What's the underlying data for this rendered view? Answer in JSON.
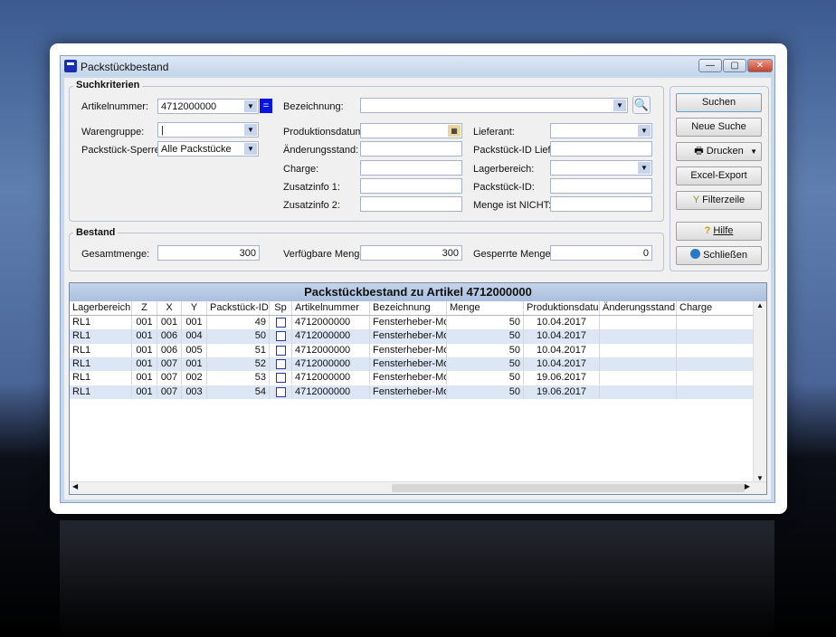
{
  "window": {
    "title": "Packstückbestand",
    "minimize": "—",
    "maximize": "▢",
    "close": "✕"
  },
  "search": {
    "legend": "Suchkriterien",
    "artikelnummer_label": "Artikelnummer:",
    "artikelnummer_value": "4712000000",
    "equals_button": "=",
    "warengruppe_label": "Warengruppe:",
    "warengruppe_value": "|",
    "sperre_label": "Packstück-Sperre:",
    "sperre_value": "Alle Packstücke",
    "bezeichnung_label": "Bezeichnung:",
    "produktionsdatum_label": "Produktionsdatum:",
    "aenderungsstand_label": "Änderungsstand:",
    "charge_label": "Charge:",
    "zusatzinfo1_label": "Zusatzinfo 1:",
    "zusatzinfo2_label": "Zusatzinfo 2:",
    "lieferant_label": "Lieferant:",
    "packstueck_id_lief_label": "Packstück-ID Lief.:",
    "lagerbereich_label": "Lagerbereich:",
    "packstueck_id_label": "Packstück-ID:",
    "menge_nicht_label": "Menge ist NICHT:"
  },
  "bestand": {
    "legend": "Bestand",
    "gesamt_label": "Gesamtmenge:",
    "gesamt_value": "300",
    "verfuegbar_label": "Verfügbare Menge:",
    "verfuegbar_value": "300",
    "gesperrt_label": "Gesperrte Menge:",
    "gesperrt_value": "0"
  },
  "buttons": {
    "suchen": "Suchen",
    "neue_suche": "Neue Suche",
    "drucken": "Drucken",
    "excel": "Excel-Export",
    "filterzeile": "Filterzeile",
    "hilfe": "Hilfe",
    "schliessen": "Schließen"
  },
  "grid": {
    "title": "Packstückbestand zu Artikel 4712000000",
    "columns": [
      "Lagerbereich",
      "Z",
      "X",
      "Y",
      "Packstück-ID",
      "Sp",
      "Artikelnummer",
      "Bezeichnung",
      "Menge",
      "Produktionsdatum",
      "Änderungsstand",
      "Charge"
    ],
    "rows": [
      [
        "RL1",
        "001",
        "001",
        "001",
        "49",
        "",
        "4712000000",
        "Fensterheber-Motor",
        "50",
        "10.04.2017",
        "",
        ""
      ],
      [
        "RL1",
        "001",
        "006",
        "004",
        "50",
        "",
        "4712000000",
        "Fensterheber-Motor",
        "50",
        "10.04.2017",
        "",
        ""
      ],
      [
        "RL1",
        "001",
        "006",
        "005",
        "51",
        "",
        "4712000000",
        "Fensterheber-Motor",
        "50",
        "10.04.2017",
        "",
        ""
      ],
      [
        "RL1",
        "001",
        "007",
        "001",
        "52",
        "",
        "4712000000",
        "Fensterheber-Motor",
        "50",
        "10.04.2017",
        "",
        ""
      ],
      [
        "RL1",
        "001",
        "007",
        "002",
        "53",
        "",
        "4712000000",
        "Fensterheber-Motor",
        "50",
        "19.06.2017",
        "",
        ""
      ],
      [
        "RL1",
        "001",
        "007",
        "003",
        "54",
        "",
        "4712000000",
        "Fensterheber-Motor",
        "50",
        "19.06.2017",
        "",
        ""
      ]
    ]
  }
}
